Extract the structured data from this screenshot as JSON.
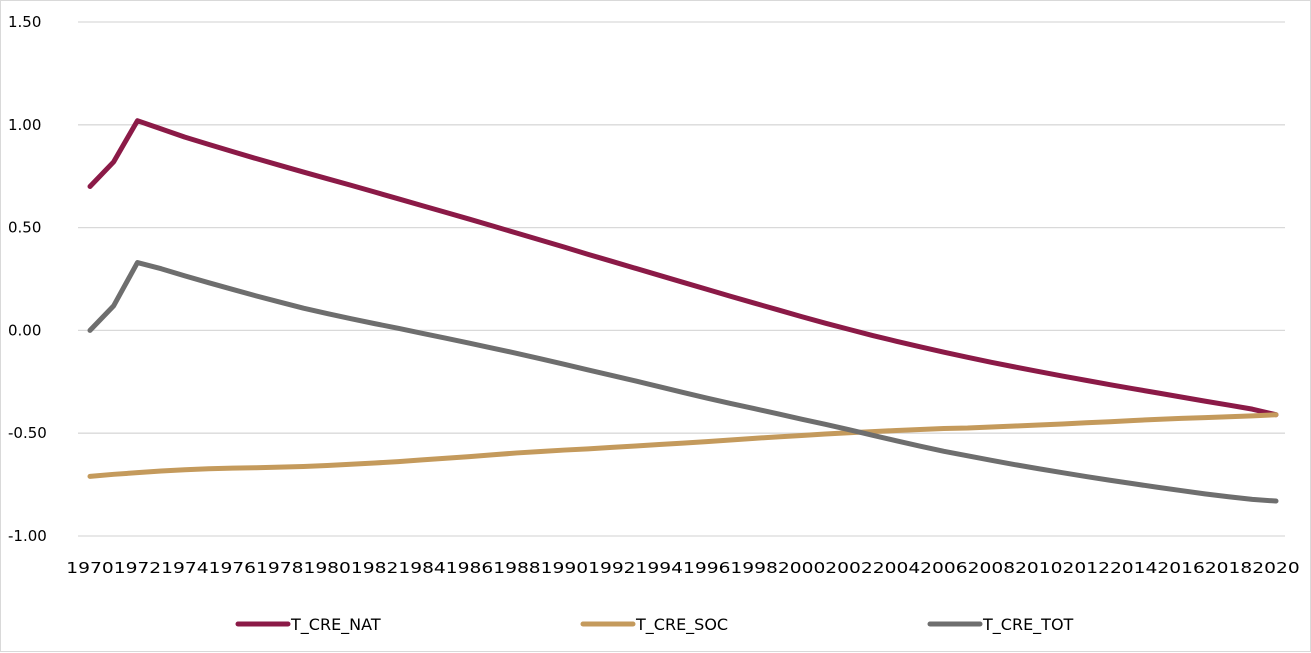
{
  "chart_data": {
    "type": "line",
    "ylim": [
      -1.0,
      1.5
    ],
    "yticks": [
      "1.50",
      "1.00",
      "0.50",
      "0.00",
      "-0.50",
      "-1.00"
    ],
    "ytick_values": [
      1.5,
      1.0,
      0.5,
      0.0,
      -0.5,
      -1.0
    ],
    "x": [
      1970,
      1971,
      1972,
      1973,
      1974,
      1975,
      1976,
      1977,
      1978,
      1979,
      1980,
      1981,
      1982,
      1983,
      1984,
      1985,
      1986,
      1987,
      1988,
      1989,
      1990,
      1991,
      1992,
      1993,
      1994,
      1995,
      1996,
      1997,
      1998,
      1999,
      2000,
      2001,
      2002,
      2003,
      2004,
      2005,
      2006,
      2007,
      2008,
      2009,
      2010,
      2011,
      2012,
      2013,
      2014,
      2015,
      2016,
      2017,
      2018,
      2019,
      2020
    ],
    "xticks": [
      "1970",
      "1972",
      "1974",
      "1976",
      "1978",
      "1980",
      "1982",
      "1984",
      "1986",
      "1988",
      "1990",
      "1992",
      "1994",
      "1996",
      "1998",
      "2000",
      "2002",
      "2004",
      "2006",
      "2008",
      "2010",
      "2012",
      "2014",
      "2016",
      "2018",
      "2020"
    ],
    "grid": true,
    "legend_position": "bottom",
    "series": [
      {
        "name": "T_CRE_NAT",
        "color": "#8B1A47",
        "values": [
          0.7,
          0.82,
          1.02,
          0.98,
          0.94,
          0.905,
          0.87,
          0.836,
          0.803,
          0.77,
          0.738,
          0.706,
          0.673,
          0.64,
          0.607,
          0.574,
          0.541,
          0.507,
          0.473,
          0.439,
          0.405,
          0.37,
          0.336,
          0.302,
          0.268,
          0.234,
          0.2,
          0.166,
          0.133,
          0.1,
          0.067,
          0.035,
          0.005,
          -0.025,
          -0.053,
          -0.08,
          -0.106,
          -0.131,
          -0.155,
          -0.178,
          -0.2,
          -0.222,
          -0.243,
          -0.264,
          -0.284,
          -0.304,
          -0.324,
          -0.344,
          -0.363,
          -0.383,
          -0.41
        ]
      },
      {
        "name": "T_CRE_SOC",
        "color": "#C49A5C",
        "values": [
          -0.71,
          -0.7,
          -0.692,
          -0.684,
          -0.678,
          -0.673,
          -0.67,
          -0.668,
          -0.665,
          -0.662,
          -0.657,
          -0.651,
          -0.645,
          -0.638,
          -0.63,
          -0.622,
          -0.614,
          -0.605,
          -0.596,
          -0.589,
          -0.582,
          -0.576,
          -0.569,
          -0.562,
          -0.555,
          -0.548,
          -0.541,
          -0.533,
          -0.525,
          -0.518,
          -0.511,
          -0.504,
          -0.498,
          -0.492,
          -0.487,
          -0.482,
          -0.477,
          -0.475,
          -0.47,
          -0.465,
          -0.46,
          -0.455,
          -0.449,
          -0.444,
          -0.438,
          -0.433,
          -0.428,
          -0.424,
          -0.42,
          -0.416,
          -0.41
        ]
      },
      {
        "name": "T_CRE_TOT",
        "color": "#6E6E6E",
        "values": [
          0.0,
          0.12,
          0.33,
          0.3,
          0.265,
          0.232,
          0.2,
          0.168,
          0.138,
          0.108,
          0.082,
          0.057,
          0.033,
          0.01,
          -0.014,
          -0.038,
          -0.062,
          -0.087,
          -0.112,
          -0.138,
          -0.165,
          -0.192,
          -0.219,
          -0.246,
          -0.274,
          -0.302,
          -0.329,
          -0.355,
          -0.38,
          -0.406,
          -0.432,
          -0.457,
          -0.483,
          -0.51,
          -0.537,
          -0.563,
          -0.588,
          -0.61,
          -0.632,
          -0.653,
          -0.673,
          -0.692,
          -0.711,
          -0.729,
          -0.746,
          -0.763,
          -0.779,
          -0.795,
          -0.809,
          -0.822,
          -0.83
        ]
      }
    ]
  }
}
